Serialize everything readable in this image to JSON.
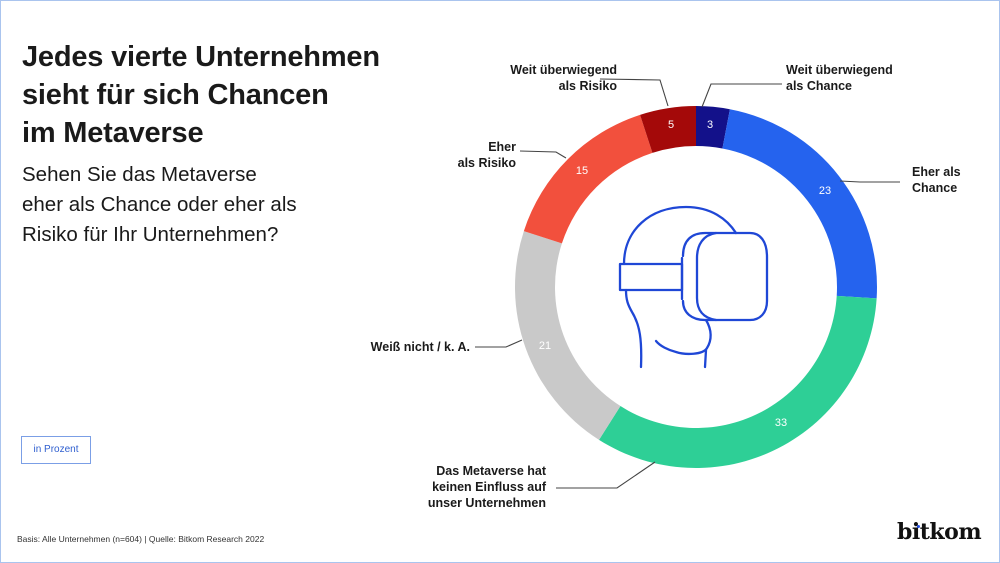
{
  "header": {
    "title_lines": [
      "Jedes vierte Unternehmen",
      "sieht für sich Chancen",
      "im Metaverse"
    ],
    "subtitle_lines": [
      "Sehen Sie das Metaverse",
      "eher als Chance oder eher als",
      "Risiko für Ihr Unternehmen?"
    ]
  },
  "unit_badge": "in Prozent",
  "footer": {
    "source": "Basis: Alle Unternehmen (n=604) | Quelle: Bitkom Research 2022",
    "logo": "bitkom"
  },
  "center_icon": "vr-headset-head-icon",
  "colors": {
    "weit_chance": "#13118a",
    "eher_chance": "#2563ee",
    "kein_einfluss": "#2ecf96",
    "weiss_nicht": "#c9c9c9",
    "eher_risiko": "#f2503d",
    "weit_risiko": "#a40909",
    "icon_stroke": "#1f47d6",
    "frame": "#aac4ee"
  },
  "labels": {
    "weit_chance": [
      "Weit überwiegend",
      "als Chance"
    ],
    "eher_chance": [
      "Eher als",
      "Chance"
    ],
    "kein_einfluss": [
      "Das Metaverse hat",
      "keinen Einfluss auf",
      "unser Unternehmen"
    ],
    "weiss_nicht": [
      "Weiß nicht / k. A."
    ],
    "eher_risiko": [
      "Eher",
      "als Risiko"
    ],
    "weit_risiko": [
      "Weit überwiegend",
      "als Risiko"
    ]
  },
  "values": {
    "weit_chance": "3",
    "eher_chance": "23",
    "kein_einfluss": "33",
    "weiss_nicht": "21",
    "eher_risiko": "15",
    "weit_risiko": "5"
  },
  "chart_data": {
    "type": "pie",
    "subtype": "donut",
    "title": "Jedes vierte Unternehmen sieht für sich Chancen im Metaverse",
    "subtitle": "Sehen Sie das Metaverse eher als Chance oder eher als Risiko für Ihr Unternehmen?",
    "unit": "in Prozent",
    "start_angle": "12 o'clock, clockwise",
    "categories": [
      "Weit überwiegend als Chance",
      "Eher als Chance",
      "Das Metaverse hat keinen Einfluss auf unser Unternehmen",
      "Weiß nicht / k. A.",
      "Eher als Risiko",
      "Weit überwiegend als Risiko"
    ],
    "values": [
      3,
      23,
      33,
      21,
      15,
      5
    ],
    "colors": [
      "#13118a",
      "#2563ee",
      "#2ecf96",
      "#c9c9c9",
      "#f2503d",
      "#a40909"
    ],
    "source": "Basis: Alle Unternehmen (n=604) | Quelle: Bitkom Research 2022"
  }
}
